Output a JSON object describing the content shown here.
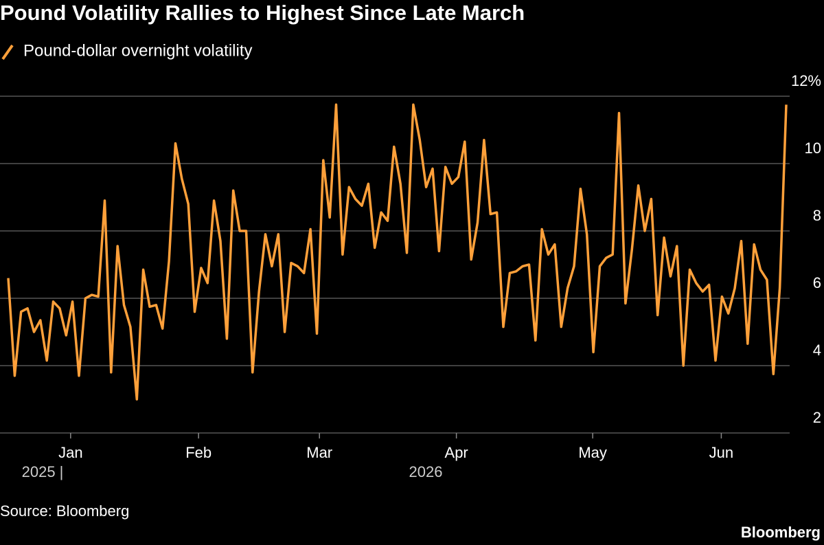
{
  "chart_data": {
    "type": "line",
    "title": "Pound Volatility Rallies to Highest Since Late March",
    "source": "Source: Bloomberg",
    "brand": "Bloomberg",
    "series": [
      {
        "name": "Pound-dollar overnight volatility",
        "color": "#ffa03a",
        "values": [
          6.6,
          3.7,
          5.6,
          5.7,
          5.0,
          5.35,
          4.15,
          5.9,
          5.7,
          4.9,
          5.9,
          3.7,
          6.0,
          6.1,
          6.05,
          8.9,
          3.8,
          7.55,
          5.8,
          5.15,
          3.0,
          6.85,
          5.75,
          5.8,
          5.1,
          7.1,
          10.6,
          9.55,
          8.8,
          5.6,
          6.9,
          6.45,
          8.9,
          7.7,
          4.8,
          9.2,
          8.0,
          8.0,
          3.8,
          6.2,
          7.9,
          6.95,
          7.9,
          5.0,
          7.05,
          6.95,
          6.75,
          8.05,
          4.95,
          10.1,
          8.4,
          11.75,
          7.3,
          9.3,
          8.95,
          8.75,
          9.4,
          7.5,
          8.55,
          8.3,
          10.5,
          9.4,
          7.35,
          11.75,
          10.7,
          9.3,
          9.85,
          7.4,
          9.9,
          9.4,
          9.6,
          10.65,
          7.15,
          8.25,
          10.7,
          8.5,
          8.55,
          5.15,
          6.75,
          6.8,
          6.95,
          7.0,
          4.75,
          8.05,
          7.3,
          7.6,
          5.15,
          6.3,
          6.95,
          9.25,
          7.9,
          4.4,
          6.95,
          7.2,
          7.3,
          11.5,
          5.85,
          7.45,
          9.35,
          8.0,
          8.95,
          5.5,
          7.8,
          6.65,
          7.55,
          4.0,
          6.85,
          6.45,
          6.2,
          6.4,
          4.15,
          6.05,
          5.55,
          6.3,
          7.7,
          4.65,
          7.6,
          6.85,
          6.55,
          3.75,
          6.3,
          11.75
        ]
      }
    ],
    "xlim": [
      0,
      121
    ],
    "xticks": [
      {
        "value": 9.7,
        "label": "Jan"
      },
      {
        "value": 29.6,
        "label": "Feb"
      },
      {
        "value": 48.4,
        "label": "Mar"
      },
      {
        "value": 69.7,
        "label": "Apr"
      },
      {
        "value": 90.9,
        "label": "May"
      },
      {
        "value": 110.9,
        "label": "Jun"
      }
    ],
    "x_year_labels": [
      "2025 |",
      "2026"
    ],
    "ylim": [
      2,
      12
    ],
    "yticks": [
      2,
      4,
      6,
      8,
      10,
      {
        "value": 12,
        "label": "12%"
      }
    ],
    "grid": true
  }
}
